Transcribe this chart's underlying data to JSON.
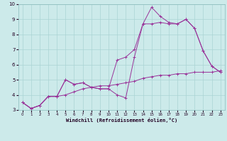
{
  "xlabel": "Windchill (Refroidissement éolien,°C)",
  "bg_color": "#cceaea",
  "grid_color": "#aad4d4",
  "line_color": "#993399",
  "xlim": [
    -0.5,
    23.5
  ],
  "ylim": [
    3,
    10
  ],
  "yticks": [
    3,
    4,
    5,
    6,
    7,
    8,
    9,
    10
  ],
  "xticks": [
    0,
    1,
    2,
    3,
    4,
    5,
    6,
    7,
    8,
    9,
    10,
    11,
    12,
    13,
    14,
    15,
    16,
    17,
    18,
    19,
    20,
    21,
    22,
    23
  ],
  "series1_x": [
    0,
    1,
    2,
    3,
    4,
    5,
    6,
    7,
    8,
    9,
    10,
    11,
    12,
    13,
    14,
    15,
    16,
    17,
    18,
    19,
    20,
    21,
    22,
    23
  ],
  "series1_y": [
    3.5,
    3.1,
    3.3,
    3.9,
    3.9,
    5.0,
    4.7,
    4.8,
    4.5,
    4.4,
    4.4,
    4.0,
    3.8,
    6.5,
    8.7,
    9.8,
    9.2,
    8.8,
    8.7,
    9.0,
    8.4,
    6.9,
    5.9,
    5.5
  ],
  "series2_x": [
    0,
    1,
    2,
    3,
    4,
    5,
    6,
    7,
    8,
    9,
    10,
    11,
    12,
    13,
    14,
    15,
    16,
    17,
    18,
    19,
    20,
    21,
    22,
    23
  ],
  "series2_y": [
    3.5,
    3.1,
    3.3,
    3.9,
    3.9,
    5.0,
    4.7,
    4.8,
    4.5,
    4.4,
    4.4,
    6.3,
    6.5,
    7.0,
    8.7,
    8.7,
    8.8,
    8.7,
    8.7,
    9.0,
    8.4,
    6.9,
    5.9,
    5.5
  ],
  "series3_x": [
    0,
    1,
    2,
    3,
    4,
    5,
    6,
    7,
    8,
    9,
    10,
    11,
    12,
    13,
    14,
    15,
    16,
    17,
    18,
    19,
    20,
    21,
    22,
    23
  ],
  "series3_y": [
    3.5,
    3.1,
    3.3,
    3.9,
    3.9,
    4.0,
    4.2,
    4.4,
    4.5,
    4.6,
    4.6,
    4.7,
    4.8,
    4.9,
    5.1,
    5.2,
    5.3,
    5.3,
    5.4,
    5.4,
    5.5,
    5.5,
    5.5,
    5.6
  ]
}
